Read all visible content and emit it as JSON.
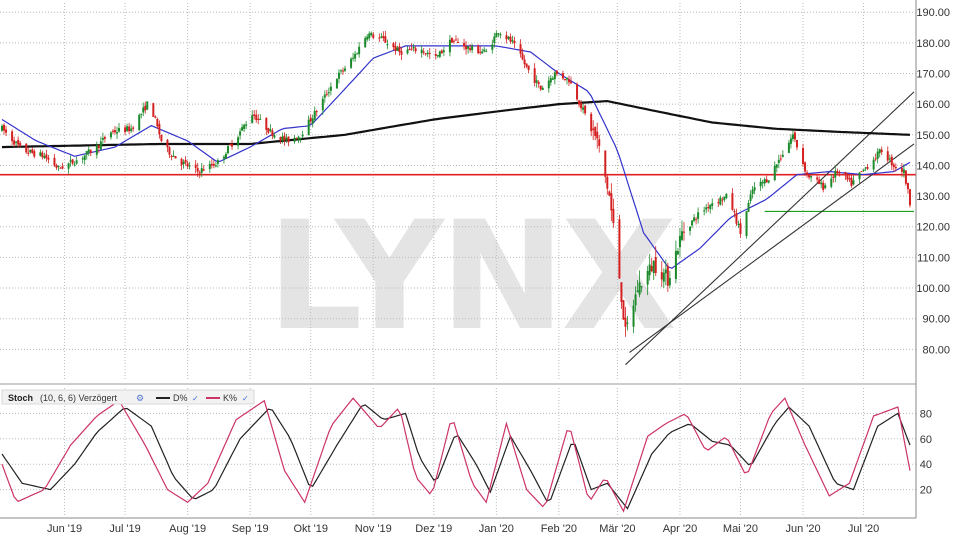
{
  "watermark": "LYNX",
  "colors": {
    "up_candle": "#1a8a2a",
    "down_candle": "#d42020",
    "sma_fast": "#3333cc",
    "sma_slow": "#111111",
    "resistance": "#e02020",
    "support": "#1aa01a",
    "trendline": "#333333",
    "stoch_d": "#222222",
    "stoch_k": "#cc3366",
    "grid": "#bbbbbb"
  },
  "stoch_legend": {
    "title": "Stoch",
    "params": "(10, 6, 6) Verzögert",
    "d_label": "D%",
    "k_label": "K%"
  },
  "chart_data": [
    {
      "type": "candlestick",
      "title": "",
      "x_tick_labels": [
        "Jun '19",
        "Jul '19",
        "Aug '19",
        "Sep '19",
        "Okt '19",
        "Nov '19",
        "Dez '19",
        "Jan '20",
        "Feb '20",
        "Mär '20",
        "Apr '20",
        "Mai '20",
        "Jun '20",
        "Jul '20"
      ],
      "y_tick_labels": [
        "80.00",
        "90.00",
        "100.00",
        "110.00",
        "120.00",
        "130.00",
        "140.00",
        "150.00",
        "160.00",
        "170.00",
        "180.00",
        "190.00"
      ],
      "ylim": [
        70,
        193
      ],
      "grid": true,
      "y_axis_side": "right",
      "price_path": [
        [
          "2019-05-15",
          152
        ],
        [
          "2019-05-25",
          145
        ],
        [
          "2019-06-05",
          143
        ],
        [
          "2019-06-12",
          139
        ],
        [
          "2019-06-22",
          142
        ],
        [
          "2019-07-01",
          146
        ],
        [
          "2019-07-08",
          151
        ],
        [
          "2019-07-18",
          152
        ],
        [
          "2019-07-27",
          161
        ],
        [
          "2019-08-03",
          146
        ],
        [
          "2019-08-12",
          141
        ],
        [
          "2019-08-20",
          138
        ],
        [
          "2019-08-30",
          141
        ],
        [
          "2019-09-08",
          149
        ],
        [
          "2019-09-16",
          157
        ],
        [
          "2019-09-25",
          151
        ],
        [
          "2019-10-03",
          148
        ],
        [
          "2019-10-10",
          150
        ],
        [
          "2019-10-18",
          158
        ],
        [
          "2019-10-27",
          168
        ],
        [
          "2019-11-05",
          175
        ],
        [
          "2019-11-12",
          183
        ],
        [
          "2019-11-20",
          181
        ],
        [
          "2019-11-28",
          177
        ],
        [
          "2019-12-08",
          178
        ],
        [
          "2019-12-16",
          175
        ],
        [
          "2019-12-24",
          181
        ],
        [
          "2020-01-02",
          178
        ],
        [
          "2020-01-10",
          177
        ],
        [
          "2020-01-16",
          184
        ],
        [
          "2020-01-23",
          180
        ],
        [
          "2020-01-30",
          172
        ],
        [
          "2020-02-06",
          165
        ],
        [
          "2020-02-13",
          170
        ],
        [
          "2020-02-20",
          168
        ],
        [
          "2020-02-27",
          158
        ],
        [
          "2020-03-05",
          148
        ],
        [
          "2020-03-11",
          130
        ],
        [
          "2020-03-15",
          110
        ],
        [
          "2020-03-19",
          85
        ],
        [
          "2020-03-25",
          100
        ],
        [
          "2020-04-02",
          108
        ],
        [
          "2020-04-09",
          103
        ],
        [
          "2020-04-16",
          118
        ],
        [
          "2020-04-24",
          124
        ],
        [
          "2020-05-01",
          128
        ],
        [
          "2020-05-09",
          130
        ],
        [
          "2020-05-15",
          118
        ],
        [
          "2020-05-21",
          132
        ],
        [
          "2020-05-29",
          136
        ],
        [
          "2020-06-05",
          144
        ],
        [
          "2020-06-10",
          150
        ],
        [
          "2020-06-17",
          137
        ],
        [
          "2020-06-25",
          133
        ],
        [
          "2020-07-02",
          138
        ],
        [
          "2020-07-09",
          134
        ],
        [
          "2020-07-17",
          140
        ],
        [
          "2020-07-24",
          145
        ],
        [
          "2020-07-30",
          140
        ],
        [
          "2020-08-04",
          138
        ],
        [
          "2020-08-07",
          128
        ]
      ],
      "sma_fast": [
        [
          "2019-05-15",
          155
        ],
        [
          "2019-06-01",
          148
        ],
        [
          "2019-06-20",
          143
        ],
        [
          "2019-07-10",
          146
        ],
        [
          "2019-07-28",
          153
        ],
        [
          "2019-08-15",
          148
        ],
        [
          "2019-08-30",
          141
        ],
        [
          "2019-09-15",
          146
        ],
        [
          "2019-10-01",
          152
        ],
        [
          "2019-10-15",
          153
        ],
        [
          "2019-11-01",
          165
        ],
        [
          "2019-11-15",
          175
        ],
        [
          "2019-12-01",
          179
        ],
        [
          "2019-12-15",
          179
        ],
        [
          "2020-01-01",
          179
        ],
        [
          "2020-01-15",
          179
        ],
        [
          "2020-02-01",
          177
        ],
        [
          "2020-02-15",
          170
        ],
        [
          "2020-03-01",
          164
        ],
        [
          "2020-03-15",
          145
        ],
        [
          "2020-03-28",
          118
        ],
        [
          "2020-04-10",
          106
        ],
        [
          "2020-04-25",
          113
        ],
        [
          "2020-05-10",
          123
        ],
        [
          "2020-05-28",
          129
        ],
        [
          "2020-06-12",
          137
        ],
        [
          "2020-06-28",
          138
        ],
        [
          "2020-07-15",
          137
        ],
        [
          "2020-07-30",
          138
        ],
        [
          "2020-08-07",
          141
        ]
      ],
      "sma_slow": [
        [
          "2019-05-15",
          146
        ],
        [
          "2019-08-01",
          147
        ],
        [
          "2019-09-15",
          147
        ],
        [
          "2019-11-01",
          150
        ],
        [
          "2019-12-15",
          155
        ],
        [
          "2020-01-20",
          158
        ],
        [
          "2020-02-15",
          160
        ],
        [
          "2020-03-10",
          161
        ],
        [
          "2020-04-01",
          158
        ],
        [
          "2020-05-01",
          154
        ],
        [
          "2020-06-01",
          152
        ],
        [
          "2020-07-01",
          151
        ],
        [
          "2020-08-07",
          150
        ]
      ],
      "resistance_level": 137,
      "support_level": {
        "from": "2020-05-27",
        "to": "2020-08-09",
        "value": 125
      },
      "trendlines": [
        {
          "from": [
            "2020-03-19",
            75
          ],
          "to": [
            "2020-08-09",
            164
          ]
        },
        {
          "from": [
            "2020-03-21",
            79
          ],
          "to": [
            "2020-08-09",
            147
          ]
        }
      ]
    },
    {
      "type": "line",
      "title": "",
      "y_tick_labels": [
        "20",
        "40",
        "60",
        "80"
      ],
      "ylim": [
        0,
        100
      ],
      "grid": true,
      "series": [
        {
          "name": "D%",
          "points": [
            [
              "2019-05-15",
              48
            ],
            [
              "2019-05-25",
              25
            ],
            [
              "2019-06-08",
              20
            ],
            [
              "2019-06-20",
              40
            ],
            [
              "2019-07-01",
              65
            ],
            [
              "2019-07-15",
              85
            ],
            [
              "2019-07-28",
              70
            ],
            [
              "2019-08-08",
              30
            ],
            [
              "2019-08-18",
              12
            ],
            [
              "2019-08-28",
              20
            ],
            [
              "2019-09-10",
              60
            ],
            [
              "2019-09-25",
              85
            ],
            [
              "2019-10-05",
              60
            ],
            [
              "2019-10-15",
              20
            ],
            [
              "2019-10-28",
              55
            ],
            [
              "2019-11-10",
              88
            ],
            [
              "2019-11-20",
              75
            ],
            [
              "2019-12-01",
              80
            ],
            [
              "2019-12-08",
              45
            ],
            [
              "2019-12-16",
              25
            ],
            [
              "2019-12-26",
              65
            ],
            [
              "2020-01-05",
              40
            ],
            [
              "2020-01-12",
              18
            ],
            [
              "2020-01-22",
              62
            ],
            [
              "2020-02-01",
              35
            ],
            [
              "2020-02-10",
              8
            ],
            [
              "2020-02-22",
              60
            ],
            [
              "2020-03-02",
              20
            ],
            [
              "2020-03-10",
              25
            ],
            [
              "2020-03-20",
              5
            ],
            [
              "2020-04-01",
              48
            ],
            [
              "2020-04-10",
              65
            ],
            [
              "2020-04-20",
              72
            ],
            [
              "2020-05-01",
              58
            ],
            [
              "2020-05-10",
              55
            ],
            [
              "2020-05-20",
              38
            ],
            [
              "2020-06-01",
              72
            ],
            [
              "2020-06-08",
              85
            ],
            [
              "2020-06-18",
              70
            ],
            [
              "2020-07-01",
              25
            ],
            [
              "2020-07-10",
              20
            ],
            [
              "2020-07-22",
              70
            ],
            [
              "2020-08-01",
              80
            ],
            [
              "2020-08-07",
              55
            ]
          ]
        },
        {
          "name": "K%",
          "points": [
            [
              "2019-05-15",
              40
            ],
            [
              "2019-05-22",
              10
            ],
            [
              "2019-06-05",
              20
            ],
            [
              "2019-06-18",
              55
            ],
            [
              "2019-07-01",
              78
            ],
            [
              "2019-07-12",
              90
            ],
            [
              "2019-07-25",
              55
            ],
            [
              "2019-08-05",
              20
            ],
            [
              "2019-08-15",
              10
            ],
            [
              "2019-08-25",
              25
            ],
            [
              "2019-09-08",
              75
            ],
            [
              "2019-09-22",
              90
            ],
            [
              "2019-10-02",
              35
            ],
            [
              "2019-10-12",
              10
            ],
            [
              "2019-10-25",
              70
            ],
            [
              "2019-11-05",
              92
            ],
            [
              "2019-11-18",
              68
            ],
            [
              "2019-11-28",
              85
            ],
            [
              "2019-12-06",
              30
            ],
            [
              "2019-12-14",
              15
            ],
            [
              "2019-12-24",
              78
            ],
            [
              "2020-01-03",
              25
            ],
            [
              "2020-01-10",
              10
            ],
            [
              "2020-01-20",
              72
            ],
            [
              "2020-01-30",
              20
            ],
            [
              "2020-02-08",
              5
            ],
            [
              "2020-02-20",
              72
            ],
            [
              "2020-03-01",
              10
            ],
            [
              "2020-03-09",
              30
            ],
            [
              "2020-03-18",
              3
            ],
            [
              "2020-03-30",
              62
            ],
            [
              "2020-04-08",
              72
            ],
            [
              "2020-04-18",
              80
            ],
            [
              "2020-04-28",
              50
            ],
            [
              "2020-05-08",
              62
            ],
            [
              "2020-05-18",
              30
            ],
            [
              "2020-05-30",
              80
            ],
            [
              "2020-06-06",
              92
            ],
            [
              "2020-06-16",
              55
            ],
            [
              "2020-06-28",
              15
            ],
            [
              "2020-07-08",
              25
            ],
            [
              "2020-07-20",
              78
            ],
            [
              "2020-08-01",
              85
            ],
            [
              "2020-08-07",
              35
            ]
          ]
        }
      ]
    }
  ]
}
